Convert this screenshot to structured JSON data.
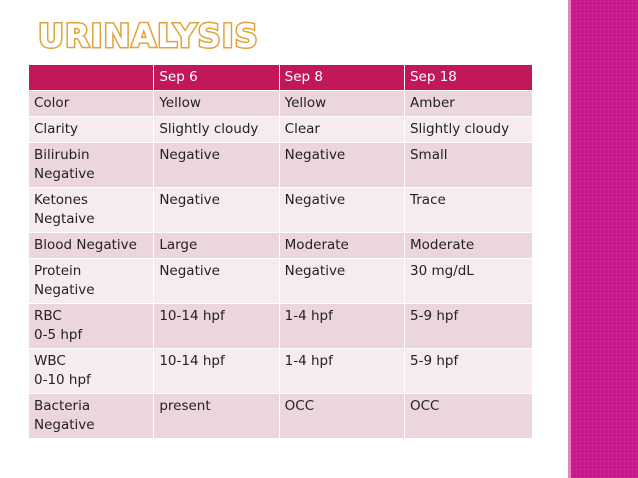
{
  "title": "URINALYSIS",
  "table": {
    "headers": [
      "",
      "Sep 6",
      "Sep 8",
      "Sep 18"
    ],
    "rows": [
      [
        "Color",
        "Yellow",
        "Yellow",
        "Amber"
      ],
      [
        "Clarity",
        "Slightly cloudy",
        "Clear",
        "Slightly cloudy"
      ],
      [
        "Bilirubin\nNegative",
        "Negative",
        "Negative",
        "Small"
      ],
      [
        "Ketones\nNegtaive",
        "Negative",
        "Negative",
        "Trace"
      ],
      [
        "Blood Negative",
        "Large",
        "Moderate",
        "Moderate"
      ],
      [
        "Protein\nNegative",
        "Negative",
        "Negative",
        "30 mg/dL"
      ],
      [
        "RBC\n0-5 hpf",
        "10-14 hpf",
        "1-4 hpf",
        "5-9 hpf"
      ],
      [
        "WBC\n0-10 hpf",
        "10-14 hpf",
        "1-4 hpf",
        "5-9 hpf"
      ],
      [
        "Bacteria\nNegative",
        "present",
        "OCC",
        "OCC"
      ]
    ]
  },
  "colors": {
    "header_bg": "#c2185b",
    "row_odd": "#ecd6dd",
    "row_even": "#f6ecef",
    "side_bar": "#c7158a",
    "title_outline": "#e0a23a"
  }
}
